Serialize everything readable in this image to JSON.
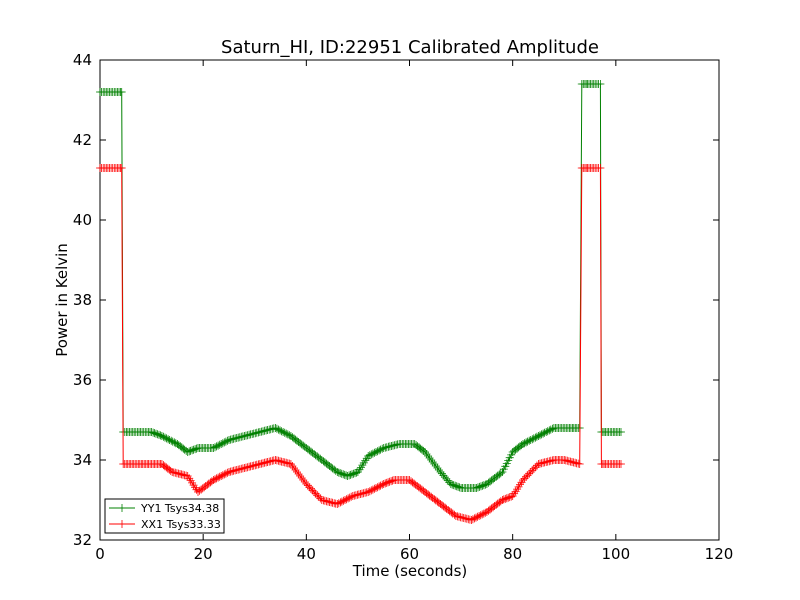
{
  "chart_data": {
    "type": "line",
    "title": "Saturn_HI, ID:22951 Calibrated Amplitude",
    "xlabel": "Time (seconds)",
    "ylabel": "Power in Kelvin",
    "xlim": [
      0,
      120
    ],
    "ylim": [
      32,
      44
    ],
    "xticks": [
      "0",
      "20",
      "40",
      "60",
      "80",
      "100",
      "120"
    ],
    "yticks": [
      "32",
      "34",
      "36",
      "38",
      "40",
      "42",
      "44"
    ],
    "grid": false,
    "legend_position": "lower-left",
    "series": [
      {
        "name": "YY1 Tsys34.38",
        "color": "#008000",
        "marker": "plus",
        "x": [
          0,
          4,
          4.2,
          4.5,
          10,
          12,
          15,
          17,
          19,
          22,
          25,
          28,
          31,
          34,
          37,
          40,
          43,
          46,
          48,
          50,
          52,
          55,
          58,
          61,
          63,
          66,
          68,
          70,
          73,
          75,
          78,
          80,
          82,
          85,
          88,
          91,
          93,
          93.4,
          94,
          94.5,
          96,
          97,
          97.2,
          98,
          101
        ],
        "y": [
          43.2,
          43.2,
          43.2,
          34.7,
          34.7,
          34.6,
          34.4,
          34.2,
          34.3,
          34.3,
          34.5,
          34.6,
          34.7,
          34.8,
          34.6,
          34.3,
          34.0,
          33.7,
          33.6,
          33.7,
          34.1,
          34.3,
          34.4,
          34.4,
          34.2,
          33.7,
          33.4,
          33.3,
          33.3,
          33.4,
          33.7,
          34.2,
          34.4,
          34.6,
          34.8,
          34.8,
          34.8,
          43.4,
          43.4,
          43.4,
          43.4,
          43.4,
          34.7,
          34.7,
          34.7
        ]
      },
      {
        "name": "XX1 Tsys33.33",
        "color": "#ff0000",
        "marker": "plus",
        "x": [
          0,
          4,
          4.2,
          4.5,
          8,
          10,
          12,
          14,
          17,
          19,
          22,
          25,
          28,
          31,
          34,
          37,
          40,
          43,
          46,
          49,
          52,
          55,
          57,
          60,
          63,
          66,
          69,
          72,
          75,
          78,
          80,
          82,
          85,
          88,
          90,
          93,
          93.4,
          94,
          94.5,
          96,
          97,
          97.2,
          98,
          101
        ],
        "y": [
          41.3,
          41.3,
          41.3,
          33.9,
          33.9,
          33.9,
          33.9,
          33.7,
          33.6,
          33.2,
          33.5,
          33.7,
          33.8,
          33.9,
          34.0,
          33.9,
          33.4,
          33.0,
          32.9,
          33.1,
          33.2,
          33.4,
          33.5,
          33.5,
          33.2,
          32.9,
          32.6,
          32.5,
          32.7,
          33.0,
          33.1,
          33.5,
          33.9,
          34.0,
          34.0,
          33.9,
          41.3,
          41.3,
          41.3,
          41.3,
          41.3,
          33.9,
          33.9,
          33.9
        ]
      }
    ]
  }
}
